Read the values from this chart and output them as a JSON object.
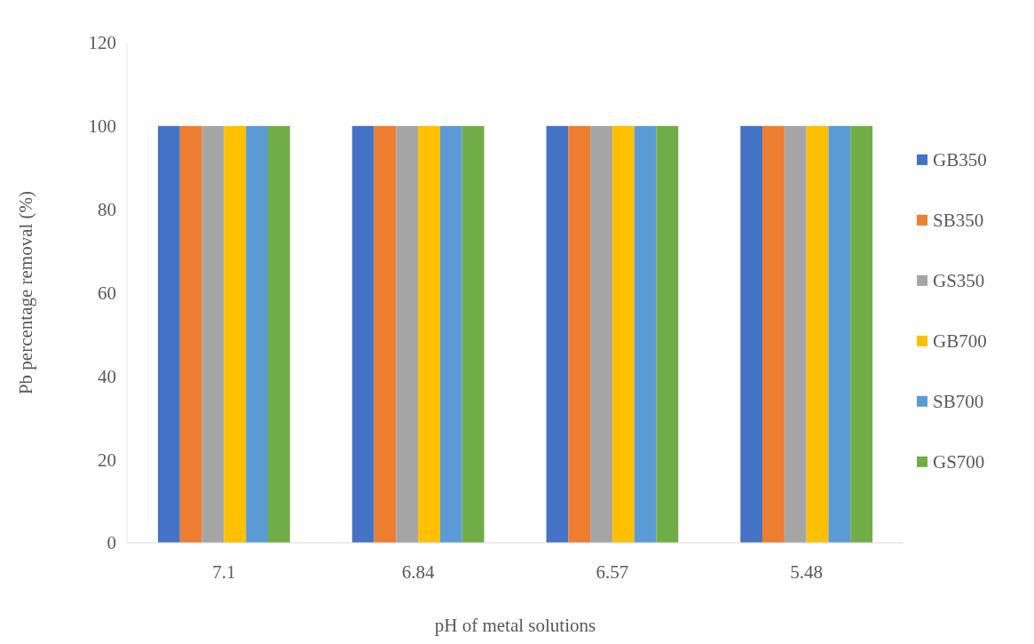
{
  "chart_data": {
    "type": "bar",
    "xlabel": "pH of metal solutions",
    "ylabel": "Pb percentage removal (%)",
    "categories": [
      "7.1",
      "6.84",
      "6.57",
      "5.48"
    ],
    "series": [
      {
        "name": "GB350",
        "color": "#4472c4",
        "values": [
          100,
          100,
          100,
          100
        ]
      },
      {
        "name": "SB350",
        "color": "#ed7d31",
        "values": [
          100,
          100,
          100,
          100
        ]
      },
      {
        "name": "GS350",
        "color": "#a5a5a5",
        "values": [
          100,
          100,
          100,
          100
        ]
      },
      {
        "name": "GB700",
        "color": "#ffc000",
        "values": [
          100,
          100,
          100,
          100
        ]
      },
      {
        "name": "SB700",
        "color": "#5b9bd5",
        "values": [
          100,
          100,
          100,
          100
        ]
      },
      {
        "name": "GS700",
        "color": "#70ad47",
        "values": [
          100,
          100,
          100,
          100
        ]
      }
    ],
    "ylim": [
      0,
      120
    ],
    "yticks": [
      0,
      20,
      40,
      60,
      80,
      100,
      120
    ],
    "legend": "right",
    "grid": false
  }
}
